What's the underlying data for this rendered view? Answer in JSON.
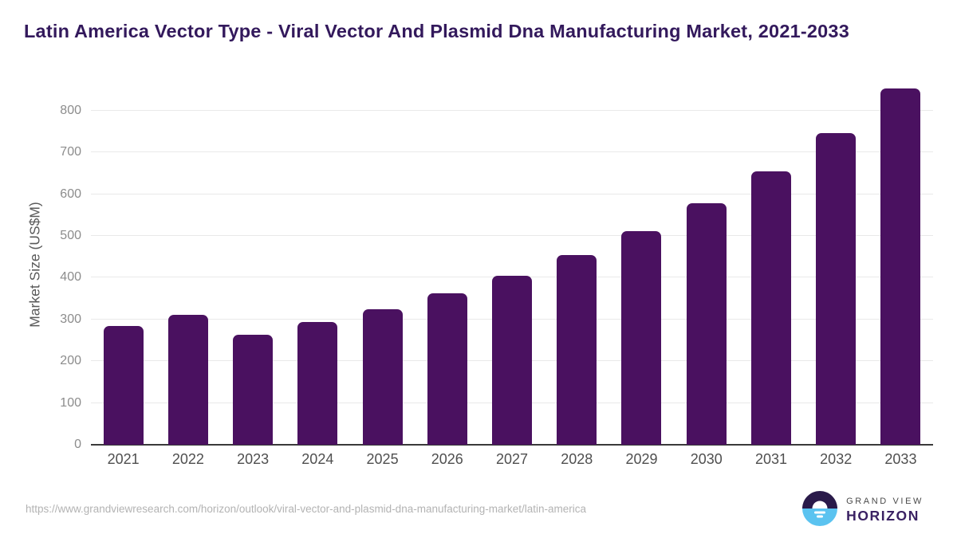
{
  "header": {
    "title": "Latin America Vector Type - Viral Vector And Plasmid Dna Manufacturing Market, 2021-2033"
  },
  "chart_data": {
    "type": "bar",
    "categories": [
      "2021",
      "2022",
      "2023",
      "2024",
      "2025",
      "2026",
      "2027",
      "2028",
      "2029",
      "2030",
      "2031",
      "2032",
      "2033"
    ],
    "values": [
      285,
      312,
      264,
      294,
      325,
      363,
      404,
      455,
      511,
      578,
      655,
      746,
      854
    ],
    "title": "Latin America Vector Type - Viral Vector And Plasmid Dna Manufacturing Market, 2021-2033",
    "xlabel": "",
    "ylabel": "Market Size (US$M)",
    "ylim": [
      0,
      855
    ],
    "yticks": [
      0,
      100,
      200,
      300,
      400,
      500,
      600,
      700,
      800
    ],
    "grid": true,
    "legend": "none",
    "bar_color": "#4A1160"
  },
  "footer": {
    "source_url": "https://www.grandviewresearch.com/horizon/outlook/viral-vector-and-plasmid-dna-manufacturing-market/latin-america",
    "logo": {
      "line1": "GRAND VIEW",
      "line2": "HORIZON",
      "icon": "grandview-horizon-sunset-icon"
    }
  },
  "colors": {
    "bar": "#4A1160",
    "title_text": "#33195C",
    "gridline": "#E9E9E9",
    "axis_line": "#3A3A3A",
    "y_tick_text": "#8C8C8C",
    "x_tick_text": "#4F4F4F",
    "url_text": "#B3B3B3",
    "logo_top": "#2A1A4A",
    "logo_bottom": "#5BC3F0"
  }
}
